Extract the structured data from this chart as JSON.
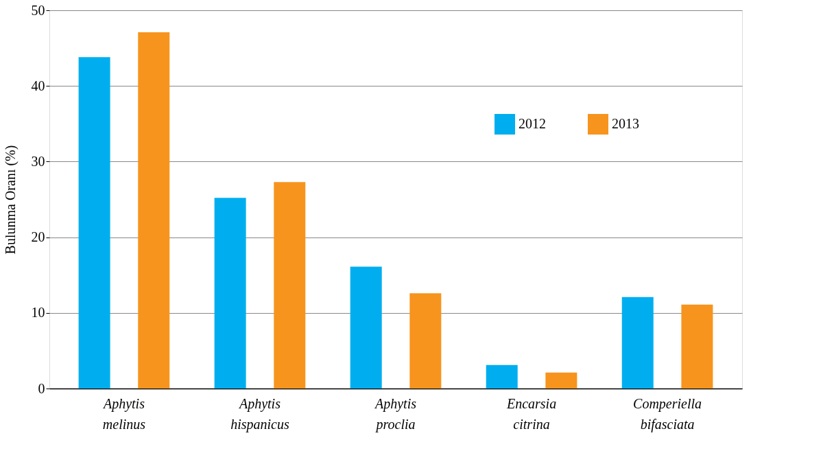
{
  "chart_data": {
    "type": "bar",
    "ylabel": "Bulunma Oranı (%)",
    "categories": [
      "Aphytis melinus",
      "Aphytis hispanicus",
      "Aphytis proclia",
      "Encarsia citrina",
      "Comperiella bifasciata"
    ],
    "series": [
      {
        "name": "2012",
        "color": "#00aeef",
        "values": [
          43.8,
          25.2,
          16.1,
          3.1,
          12.1
        ]
      },
      {
        "name": "2013",
        "color": "#f7941d",
        "values": [
          47.1,
          27.3,
          12.6,
          2.1,
          11.1
        ]
      }
    ],
    "ylim": [
      0,
      50
    ],
    "yticks": [
      0,
      10,
      20,
      30,
      40,
      50
    ],
    "grid": "y",
    "legend": "top right"
  }
}
